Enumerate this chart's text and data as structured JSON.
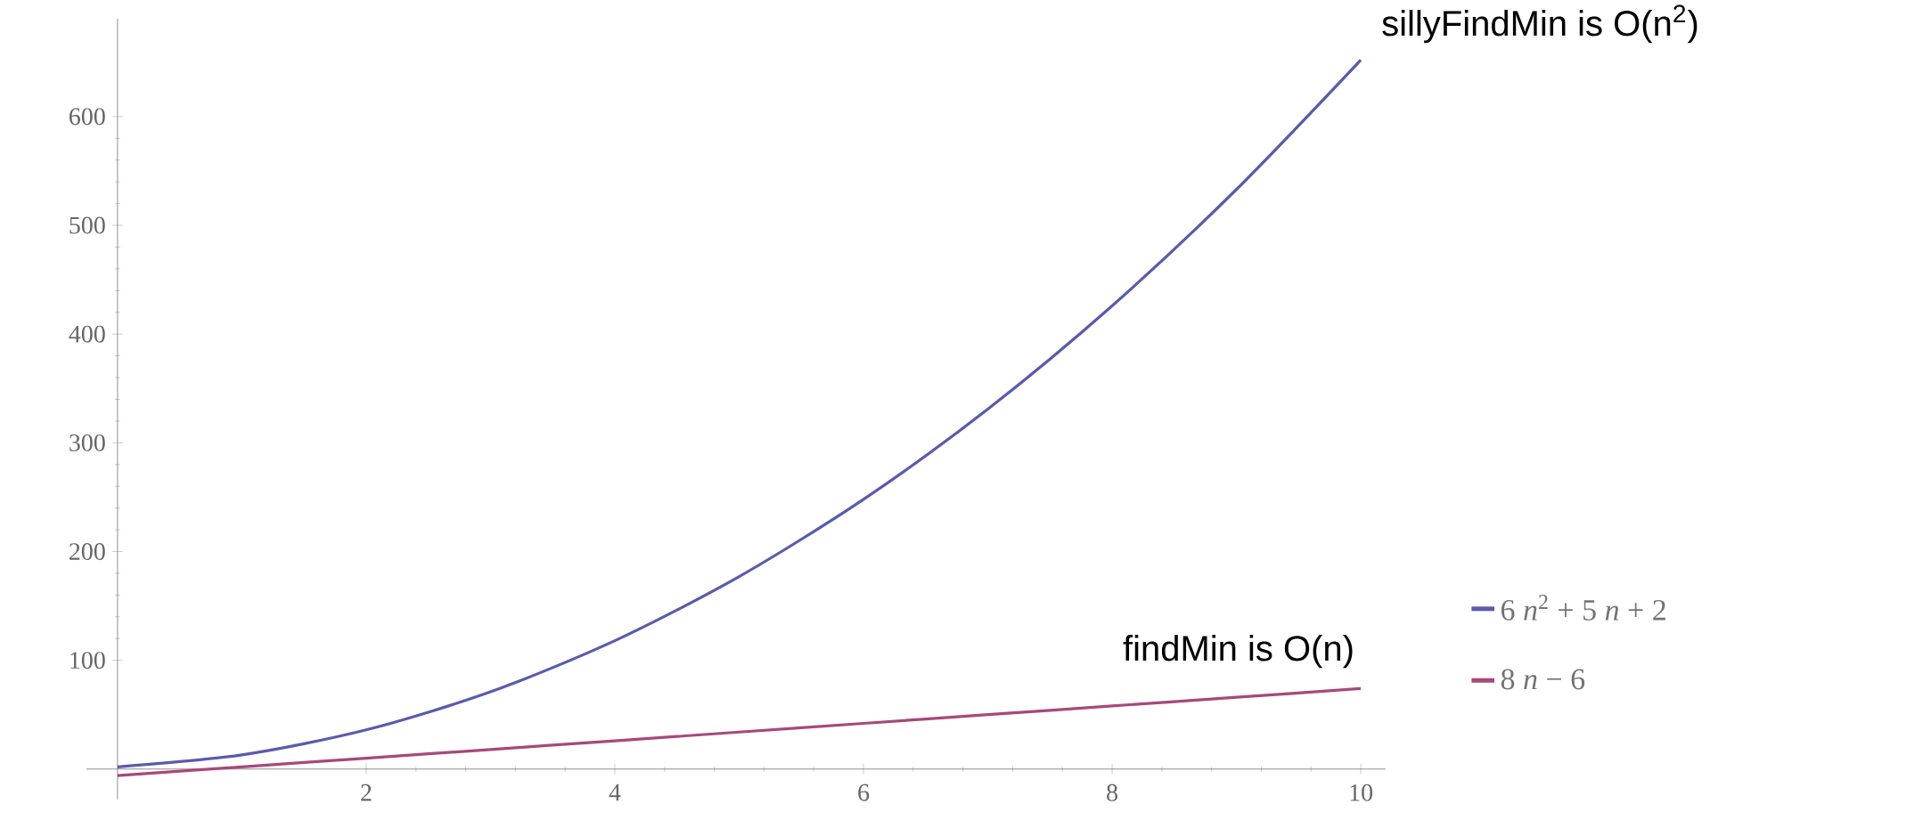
{
  "chart_data": {
    "type": "line",
    "x": [
      0,
      1,
      2,
      3,
      4,
      5,
      6,
      7,
      8,
      9,
      10
    ],
    "series": [
      {
        "name": "6 *n*$^{2}$ + 5 *n* + 2",
        "color": "#5a5aae",
        "values": [
          2,
          13,
          36,
          71,
          118,
          177,
          248,
          331,
          426,
          533,
          652
        ]
      },
      {
        "name": "8 *n* − 6",
        "color": "#a8487a",
        "values": [
          -6,
          2,
          10,
          18,
          26,
          34,
          42,
          50,
          58,
          66,
          74
        ]
      }
    ],
    "xlim": [
      -0.25,
      10.2
    ],
    "ylim": [
      -28,
      690
    ],
    "xticks": [
      2,
      4,
      6,
      8,
      10
    ],
    "yticks": [
      100,
      200,
      300,
      400,
      500,
      600
    ],
    "grid": false,
    "legend": "right",
    "marker": "none",
    "line_style": "solid",
    "annotations": [
      {
        "text": "sillyFindMin is O(n$^{2}$)",
        "x": 10,
        "y": 652
      },
      {
        "text": "findMin is O(n)",
        "x": 10,
        "y": 74
      }
    ]
  }
}
